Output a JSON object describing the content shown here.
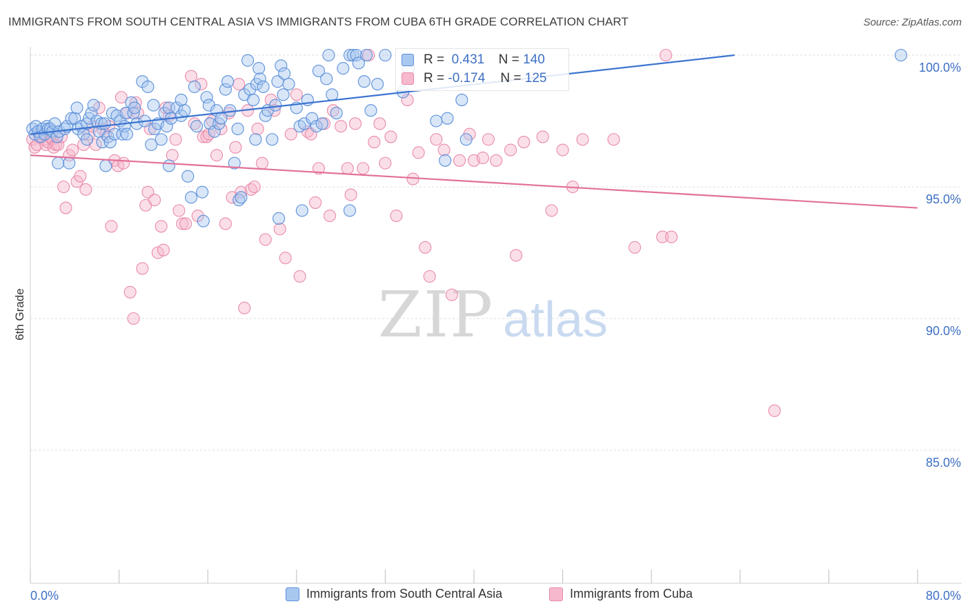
{
  "title": "IMMIGRANTS FROM SOUTH CENTRAL ASIA VS IMMIGRANTS FROM CUBA 6TH GRADE CORRELATION CHART",
  "source": "Source: ZipAtlas.com",
  "watermark": {
    "zip": "ZIP",
    "atlas": "atlas"
  },
  "colors": {
    "blue_fill": "#a9c8f0",
    "blue_stroke": "#5b8fd9",
    "blue_line": "#3b74d0",
    "pink_fill": "#f6b8cc",
    "pink_stroke": "#e88aaa",
    "pink_line": "#e2709a",
    "tick_label": "#3d6fc4",
    "grid": "#dcdcdc"
  },
  "stats": [
    {
      "r_label": "R =",
      "r_value": "0.431",
      "n_label": "N =",
      "n_value": "140"
    },
    {
      "r_label": "R =",
      "r_value": "-0.174",
      "n_label": "N =",
      "n_value": "125"
    }
  ],
  "chart_data": {
    "type": "scatter",
    "title": "IMMIGRANTS FROM SOUTH CENTRAL ASIA VS IMMIGRANTS FROM CUBA 6TH GRADE CORRELATION CHART",
    "xlabel": "",
    "ylabel": "6th Grade",
    "xlim": [
      0,
      80
    ],
    "ylim": [
      80.5,
      100.7
    ],
    "x_tick_labels": [
      "0.0%",
      "80.0%"
    ],
    "y_ticks": [
      100,
      95,
      90,
      85
    ],
    "y_tick_labels": [
      "100.0%",
      "95.0%",
      "90.0%",
      "85.0%"
    ],
    "grid": true,
    "legend_position": "bottom",
    "series": [
      {
        "name": "Immigrants from South Central Asia",
        "color": "#5b8fd9",
        "trend": {
          "x0": 0,
          "y0": 97.0,
          "x1": 63.5,
          "y1": 100.0
        },
        "points": [
          [
            0.2,
            97.2
          ],
          [
            0.4,
            97.0
          ],
          [
            0.5,
            97.3
          ],
          [
            0.7,
            97.1
          ],
          [
            0.9,
            96.9
          ],
          [
            1.1,
            97.2
          ],
          [
            1.3,
            97.0
          ],
          [
            1.5,
            97.3
          ],
          [
            1.6,
            97.2
          ],
          [
            1.8,
            97.2
          ],
          [
            2.0,
            97.1
          ],
          [
            2.2,
            97.4
          ],
          [
            2.4,
            96.9
          ],
          [
            2.6,
            97.1
          ],
          [
            2.5,
            95.9
          ],
          [
            3.1,
            97.2
          ],
          [
            3.3,
            97.3
          ],
          [
            3.5,
            95.9
          ],
          [
            3.7,
            97.6
          ],
          [
            4.0,
            97.6
          ],
          [
            4.2,
            98.0
          ],
          [
            4.3,
            97.2
          ],
          [
            4.6,
            97.3
          ],
          [
            4.8,
            97.0
          ],
          [
            5.1,
            97.4
          ],
          [
            5.1,
            96.8
          ],
          [
            5.3,
            97.6
          ],
          [
            5.5,
            97.8
          ],
          [
            5.7,
            98.1
          ],
          [
            6.0,
            97.5
          ],
          [
            6.2,
            97.1
          ],
          [
            6.4,
            97.4
          ],
          [
            6.5,
            96.7
          ],
          [
            6.7,
            97.4
          ],
          [
            6.8,
            95.8
          ],
          [
            7.0,
            96.9
          ],
          [
            7.2,
            96.7
          ],
          [
            7.4,
            97.8
          ],
          [
            7.6,
            97.0
          ],
          [
            7.8,
            97.7
          ],
          [
            8.1,
            97.5
          ],
          [
            8.3,
            97.0
          ],
          [
            8.5,
            97.3
          ],
          [
            8.6,
            97.8
          ],
          [
            8.7,
            97.0
          ],
          [
            9.1,
            98.2
          ],
          [
            9.3,
            97.8
          ],
          [
            9.4,
            98.0
          ],
          [
            9.6,
            97.4
          ],
          [
            10.1,
            99.0
          ],
          [
            10.3,
            97.5
          ],
          [
            10.6,
            98.8
          ],
          [
            10.9,
            96.6
          ],
          [
            11.1,
            98.1
          ],
          [
            11.2,
            97.2
          ],
          [
            11.5,
            97.4
          ],
          [
            11.8,
            96.8
          ],
          [
            12.1,
            97.8
          ],
          [
            12.3,
            97.3
          ],
          [
            12.5,
            98.0
          ],
          [
            12.5,
            95.8
          ],
          [
            12.7,
            97.6
          ],
          [
            13.2,
            98.0
          ],
          [
            13.6,
            98.3
          ],
          [
            13.6,
            97.7
          ],
          [
            13.9,
            97.9
          ],
          [
            14.2,
            95.4
          ],
          [
            14.5,
            94.6
          ],
          [
            14.8,
            98.8
          ],
          [
            15.0,
            97.3
          ],
          [
            15.5,
            94.8
          ],
          [
            15.6,
            93.7
          ],
          [
            15.9,
            98.4
          ],
          [
            16.1,
            98.1
          ],
          [
            16.2,
            97.4
          ],
          [
            16.6,
            97.1
          ],
          [
            16.8,
            97.9
          ],
          [
            17.0,
            97.4
          ],
          [
            17.2,
            97.6
          ],
          [
            17.6,
            98.7
          ],
          [
            17.8,
            99.0
          ],
          [
            18.0,
            97.9
          ],
          [
            18.4,
            95.9
          ],
          [
            18.7,
            97.2
          ],
          [
            18.8,
            94.5
          ],
          [
            19.0,
            94.6
          ],
          [
            19.3,
            98.5
          ],
          [
            19.6,
            99.8
          ],
          [
            19.8,
            98.7
          ],
          [
            20.1,
            98.3
          ],
          [
            20.3,
            96.8
          ],
          [
            20.4,
            98.9
          ],
          [
            20.6,
            99.5
          ],
          [
            20.7,
            99.1
          ],
          [
            21.0,
            98.8
          ],
          [
            21.2,
            97.7
          ],
          [
            21.4,
            97.9
          ],
          [
            21.8,
            96.8
          ],
          [
            22.1,
            98.1
          ],
          [
            22.3,
            99.0
          ],
          [
            22.4,
            93.8
          ],
          [
            22.6,
            99.6
          ],
          [
            22.8,
            98.5
          ],
          [
            22.9,
            99.3
          ],
          [
            23.3,
            98.9
          ],
          [
            24.0,
            98.0
          ],
          [
            24.3,
            97.3
          ],
          [
            24.5,
            94.1
          ],
          [
            24.7,
            97.4
          ],
          [
            25.0,
            98.3
          ],
          [
            25.4,
            97.6
          ],
          [
            25.8,
            97.3
          ],
          [
            26.0,
            99.4
          ],
          [
            26.3,
            97.4
          ],
          [
            26.7,
            99.1
          ],
          [
            26.9,
            100.0
          ],
          [
            27.2,
            98.5
          ],
          [
            27.6,
            97.8
          ],
          [
            28.2,
            99.5
          ],
          [
            28.8,
            94.1
          ],
          [
            28.8,
            100.0
          ],
          [
            29.1,
            100.0
          ],
          [
            29.4,
            100.0
          ],
          [
            29.6,
            99.7
          ],
          [
            30.1,
            99.0
          ],
          [
            30.3,
            100.0
          ],
          [
            30.7,
            97.9
          ],
          [
            31.3,
            98.9
          ],
          [
            32.0,
            100.0
          ],
          [
            33.6,
            98.6
          ],
          [
            34.1,
            99.5
          ],
          [
            36.6,
            97.5
          ],
          [
            37.4,
            96.0
          ],
          [
            37.6,
            97.6
          ],
          [
            38.9,
            98.3
          ],
          [
            39.3,
            96.8
          ],
          [
            78.5,
            100.0
          ]
        ]
      },
      {
        "name": "Immigrants from Cuba",
        "color": "#e88aaa",
        "trend": {
          "x0": 0,
          "y0": 96.2,
          "x1": 80,
          "y1": 94.2
        },
        "points": [
          [
            0.2,
            96.8
          ],
          [
            0.4,
            96.5
          ],
          [
            0.6,
            96.6
          ],
          [
            0.8,
            97.0
          ],
          [
            1.0,
            96.9
          ],
          [
            1.2,
            96.8
          ],
          [
            1.4,
            96.6
          ],
          [
            1.6,
            96.7
          ],
          [
            1.8,
            96.9
          ],
          [
            2.0,
            96.8
          ],
          [
            2.1,
            96.5
          ],
          [
            2.3,
            96.6
          ],
          [
            2.5,
            96.6
          ],
          [
            2.8,
            96.9
          ],
          [
            3.0,
            95.0
          ],
          [
            3.2,
            94.2
          ],
          [
            3.5,
            96.2
          ],
          [
            3.8,
            96.4
          ],
          [
            4.2,
            95.2
          ],
          [
            4.5,
            95.4
          ],
          [
            4.8,
            96.6
          ],
          [
            5.0,
            94.9
          ],
          [
            5.3,
            97.0
          ],
          [
            5.6,
            97.3
          ],
          [
            5.9,
            96.6
          ],
          [
            6.2,
            98.0
          ],
          [
            6.5,
            97.2
          ],
          [
            6.8,
            97.0
          ],
          [
            7.1,
            97.3
          ],
          [
            7.3,
            93.5
          ],
          [
            7.6,
            96.0
          ],
          [
            7.9,
            95.8
          ],
          [
            8.2,
            98.4
          ],
          [
            8.4,
            95.9
          ],
          [
            8.7,
            97.8
          ],
          [
            9.0,
            91.0
          ],
          [
            9.3,
            90.0
          ],
          [
            9.5,
            98.2
          ],
          [
            9.7,
            97.8
          ],
          [
            10.1,
            91.9
          ],
          [
            10.4,
            94.3
          ],
          [
            10.6,
            94.8
          ],
          [
            10.8,
            97.2
          ],
          [
            11.2,
            94.5
          ],
          [
            11.5,
            92.5
          ],
          [
            11.8,
            93.5
          ],
          [
            12.0,
            92.6
          ],
          [
            12.2,
            98.0
          ],
          [
            12.5,
            97.7
          ],
          [
            12.8,
            96.2
          ],
          [
            13.1,
            96.8
          ],
          [
            13.4,
            94.1
          ],
          [
            13.7,
            93.6
          ],
          [
            14.0,
            93.6
          ],
          [
            14.5,
            99.2
          ],
          [
            14.8,
            97.4
          ],
          [
            15.1,
            93.9
          ],
          [
            15.4,
            98.9
          ],
          [
            15.6,
            96.9
          ],
          [
            15.9,
            96.9
          ],
          [
            16.1,
            97.0
          ],
          [
            16.4,
            97.5
          ],
          [
            16.8,
            96.2
          ],
          [
            17.2,
            97.2
          ],
          [
            17.6,
            93.6
          ],
          [
            17.9,
            97.8
          ],
          [
            18.2,
            94.6
          ],
          [
            18.5,
            96.5
          ],
          [
            18.8,
            98.9
          ],
          [
            19.0,
            94.8
          ],
          [
            19.3,
            90.4
          ],
          [
            19.6,
            97.9
          ],
          [
            19.9,
            94.9
          ],
          [
            20.2,
            95.0
          ],
          [
            20.5,
            97.2
          ],
          [
            20.9,
            95.9
          ],
          [
            21.2,
            93.0
          ],
          [
            21.7,
            98.3
          ],
          [
            22.0,
            97.9
          ],
          [
            22.5,
            93.4
          ],
          [
            23.0,
            92.3
          ],
          [
            23.5,
            97.0
          ],
          [
            24.0,
            98.5
          ],
          [
            24.3,
            91.6
          ],
          [
            25.0,
            97.1
          ],
          [
            25.3,
            97.0
          ],
          [
            25.7,
            94.4
          ],
          [
            26.0,
            95.7
          ],
          [
            26.5,
            97.4
          ],
          [
            27.0,
            93.9
          ],
          [
            27.3,
            97.9
          ],
          [
            28.0,
            97.3
          ],
          [
            28.6,
            95.7
          ],
          [
            28.9,
            94.7
          ],
          [
            29.3,
            97.4
          ],
          [
            30.0,
            95.7
          ],
          [
            30.5,
            100.0
          ],
          [
            31.0,
            96.7
          ],
          [
            31.5,
            97.4
          ],
          [
            32.0,
            95.9
          ],
          [
            32.5,
            96.9
          ],
          [
            33.0,
            93.9
          ],
          [
            34.0,
            98.3
          ],
          [
            34.5,
            95.3
          ],
          [
            35.0,
            96.3
          ],
          [
            35.6,
            92.7
          ],
          [
            36.0,
            91.6
          ],
          [
            36.6,
            96.8
          ],
          [
            37.3,
            96.4
          ],
          [
            38.0,
            90.9
          ],
          [
            38.7,
            96.0
          ],
          [
            39.6,
            97.0
          ],
          [
            40.0,
            96.0
          ],
          [
            40.8,
            96.1
          ],
          [
            41.3,
            96.8
          ],
          [
            42.0,
            96.0
          ],
          [
            43.3,
            96.4
          ],
          [
            43.8,
            92.4
          ],
          [
            44.5,
            96.7
          ],
          [
            46.2,
            96.9
          ],
          [
            47.0,
            94.1
          ],
          [
            48.0,
            96.4
          ],
          [
            48.9,
            95.0
          ],
          [
            49.8,
            96.8
          ],
          [
            52.6,
            96.8
          ],
          [
            54.5,
            92.7
          ],
          [
            57.0,
            93.1
          ],
          [
            57.8,
            93.1
          ],
          [
            67.1,
            86.5
          ],
          [
            57.3,
            100.0
          ]
        ]
      }
    ]
  }
}
